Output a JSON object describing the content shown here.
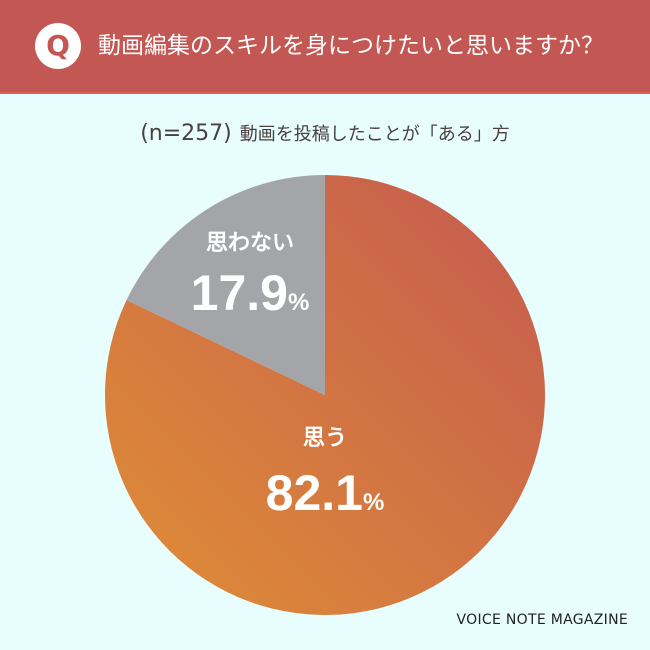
{
  "header": {
    "badge": "Q",
    "title": "動画編集のスキルを身につけたいと思いますか？"
  },
  "subtitle": {
    "n": "(n=257)",
    "text": "動画を投稿したことが「ある」方"
  },
  "chart_data": {
    "type": "pie",
    "categories": [
      "思う",
      "思わない"
    ],
    "values": [
      82.1,
      17.9
    ],
    "labels": [
      "82.1%",
      "17.9%"
    ],
    "colors": {
      "思う": [
        "#c45a50",
        "#e08e36"
      ],
      "思わない": "#a3a5a8"
    }
  },
  "brand": "VOICE NOTE MAGAZINE"
}
